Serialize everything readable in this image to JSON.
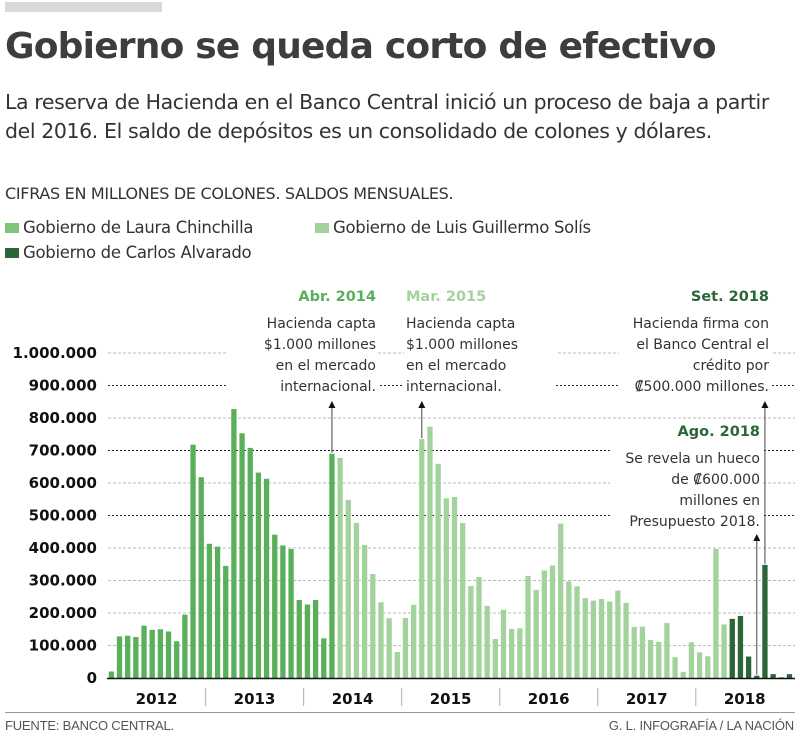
{
  "header": {
    "title": "Gobierno se queda corto de efectivo",
    "subtitle": "La reserva de Hacienda en el Banco Central inició un proceso de baja a partir del 2016. El saldo de depósitos es un consolidado de colones y dólares.",
    "units": "CIFRAS EN MILLONES DE COLONES. SALDOS MENSUALES."
  },
  "legend": [
    {
      "label": "Gobierno de Laura Chinchilla",
      "color": "#6dbb69"
    },
    {
      "label": "Gobierno de Luis Guillermo Solís",
      "color": "#a3d39c"
    },
    {
      "label": "Gobierno de Carlos Alvarado",
      "color": "#2a6638"
    }
  ],
  "footer": {
    "source": "FUENTE: BANCO CENTRAL.",
    "credit": "G. L. INFOGRAFÍA / LA NACIÓN"
  },
  "chart_data": {
    "type": "bar",
    "title": "Gobierno se queda corto de efectivo",
    "xlabel": "",
    "ylabel": "Millones de colones",
    "ylim": [
      0,
      1000000
    ],
    "yticks": [
      0,
      100000,
      200000,
      300000,
      400000,
      500000,
      600000,
      700000,
      800000,
      900000,
      1000000
    ],
    "ytick_labels": [
      "0",
      "100.000",
      "200.000",
      "300.000",
      "400.000",
      "500.000",
      "600.000",
      "700.000",
      "800.000",
      "900.000",
      "1.000.000"
    ],
    "grid": true,
    "legend_position": "top-left",
    "years": [
      "2012",
      "2013",
      "2014",
      "2015",
      "2016",
      "2017",
      "2018"
    ],
    "colors": {
      "chinchilla": "#5aaf5a",
      "solis": "#a3d39c",
      "alvarado": "#2a6638"
    },
    "series": [
      {
        "name": "Gobierno de Laura Chinchilla",
        "key": "chinchilla",
        "start_index": 0,
        "values": [
          20000,
          128000,
          130000,
          126000,
          161000,
          148000,
          150000,
          143000,
          113000,
          195000,
          718000,
          618000,
          413000,
          404000,
          345000,
          887000,
          753000,
          708000,
          632000,
          613000,
          441000,
          408000,
          397000,
          240000,
          226000,
          240000,
          122000,
          690000
        ]
      },
      {
        "name": "Gobierno de Luis Guillermo Solís",
        "key": "solis",
        "start_index": 28,
        "values": [
          677000,
          548000,
          477000,
          409000,
          320000,
          233000,
          184000,
          80000,
          185000,
          225000,
          735000,
          773000,
          659000,
          553000,
          557000,
          477000,
          283000,
          311000,
          222000,
          120000,
          210000,
          151000,
          153000,
          314000,
          271000,
          331000,
          346000,
          475000,
          297000,
          282000,
          246000,
          238000,
          243000,
          235000,
          269000,
          231000,
          157000,
          158000,
          117000,
          111000,
          169000,
          64000,
          19000,
          110000,
          79000,
          67000,
          397000,
          165000
        ]
      },
      {
        "name": "Gobierno de Carlos Alvarado",
        "key": "alvarado",
        "start_index": 76,
        "values": [
          182000,
          191000,
          66000,
          7000,
          348000,
          12000,
          2000,
          12000
        ]
      }
    ],
    "annotations": [
      {
        "date": "Abr. 2014",
        "index": 27,
        "text": [
          "Hacienda capta",
          "$1.000 millones",
          "en el mercado",
          "internacional."
        ],
        "color": "#5aaf5a"
      },
      {
        "date": "Mar. 2015",
        "index": 38,
        "text": [
          "Hacienda capta",
          "$1.000 millones",
          "en el mercado",
          "internacional."
        ],
        "color": "#a3d39c"
      },
      {
        "date": "Set. 2018",
        "index": 80,
        "text": [
          "Hacienda firma con",
          "el Banco Central el",
          "crédito por",
          "₡500.000 millones."
        ],
        "color": "#2a6638"
      },
      {
        "date": "Ago. 2018",
        "index": 79,
        "text": [
          "Se revela un hueco",
          "de  ₡600.000",
          "millones en",
          "Presupuesto 2018."
        ],
        "color": "#2a6638"
      }
    ]
  }
}
